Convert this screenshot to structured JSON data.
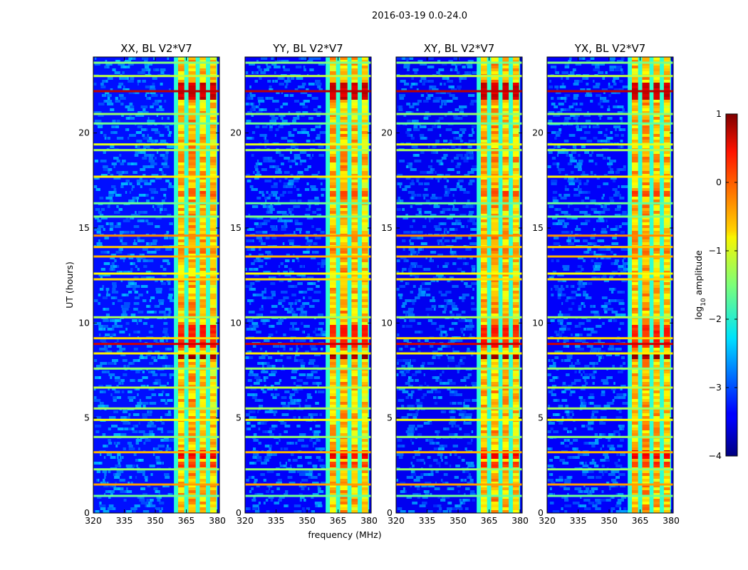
{
  "chart_data": {
    "type": "heatmap",
    "suptitle": "2016-03-19 0.0-24.0",
    "xlabel": "frequency (MHz)",
    "ylabel": "UT (hours)",
    "xlim": [
      320,
      381
    ],
    "ylim": [
      0,
      24
    ],
    "xticks": [
      320,
      335,
      350,
      365,
      380
    ],
    "yticks": [
      0,
      5,
      10,
      15,
      20
    ],
    "colormap": "jet",
    "colorbar": {
      "label": "log",
      "label_sub": "10",
      "label_rest": " amplitude",
      "range": [
        -4,
        1
      ],
      "ticks": [
        1,
        0,
        -1,
        -2,
        -3,
        -4
      ],
      "tick_labels": [
        "1",
        "0",
        "−1",
        "−2",
        "−3",
        "−4"
      ]
    },
    "panels": [
      {
        "title": "XX, BL V2*V7",
        "background": -3.3,
        "band": [
          359,
          380
        ]
      },
      {
        "title": "YY, BL V2*V7",
        "background": -3.4,
        "band": [
          359,
          380
        ]
      },
      {
        "title": "XY, BL V2*V7",
        "background": -3.45,
        "band": [
          359,
          380
        ]
      },
      {
        "title": "YX, BL V2*V7",
        "background": -3.4,
        "band": [
          359,
          380
        ]
      }
    ],
    "channels": [
      {
        "name": "ch1",
        "freq_range": [
          361,
          364
        ],
        "mean": -0.6
      },
      {
        "name": "ch2",
        "freq_range": [
          366,
          369.5
        ],
        "mean": -0.5
      },
      {
        "name": "ch3",
        "freq_range": [
          371.5,
          374.5
        ],
        "mean": -0.6
      },
      {
        "name": "ch4",
        "freq_range": [
          376.5,
          379.5
        ],
        "mean": -0.7
      }
    ],
    "bright_intervals_ut": [
      {
        "range": [
          21.9,
          22.7
        ],
        "value": 0.6
      },
      {
        "range": [
          18.6,
          18.8
        ],
        "value": -0.2
      },
      {
        "range": [
          16.8,
          17.0
        ],
        "value": 0.0
      },
      {
        "range": [
          13.8,
          14.1
        ],
        "value": -0.2
      },
      {
        "range": [
          8.8,
          9.9
        ],
        "value": 0.2
      },
      {
        "range": [
          8.2,
          8.4
        ],
        "value": 0.8
      },
      {
        "range": [
          3.0,
          3.3
        ],
        "value": 0.4
      },
      {
        "range": [
          2.5,
          2.8
        ],
        "value": 0.1
      }
    ],
    "rfi_lines_ut": [
      {
        "ut": 23.7,
        "value": -1.5
      },
      {
        "ut": 23.0,
        "value": -1.2
      },
      {
        "ut": 22.2,
        "value": 0.7
      },
      {
        "ut": 21.0,
        "value": -1.4
      },
      {
        "ut": 20.5,
        "value": -1.6
      },
      {
        "ut": 19.4,
        "value": -1.0
      },
      {
        "ut": 19.1,
        "value": -1.3
      },
      {
        "ut": 17.7,
        "value": -0.8
      },
      {
        "ut": 16.3,
        "value": -1.6
      },
      {
        "ut": 15.6,
        "value": -1.5
      },
      {
        "ut": 14.6,
        "value": -0.3
      },
      {
        "ut": 14.0,
        "value": -0.6
      },
      {
        "ut": 13.5,
        "value": -0.5
      },
      {
        "ut": 12.6,
        "value": -0.9
      },
      {
        "ut": 12.3,
        "value": -0.7
      },
      {
        "ut": 10.3,
        "value": -1.3
      },
      {
        "ut": 9.2,
        "value": -0.7
      },
      {
        "ut": 8.9,
        "value": 0.6
      },
      {
        "ut": 8.4,
        "value": -0.8
      },
      {
        "ut": 7.6,
        "value": -1.4
      },
      {
        "ut": 6.6,
        "value": -1.2
      },
      {
        "ut": 5.5,
        "value": -1.3
      },
      {
        "ut": 4.9,
        "value": -0.9
      },
      {
        "ut": 4.0,
        "value": -1.4
      },
      {
        "ut": 3.2,
        "value": -0.5
      },
      {
        "ut": 2.3,
        "value": -1.4
      },
      {
        "ut": 1.5,
        "value": -0.4
      },
      {
        "ut": 0.9,
        "value": -1.6
      }
    ]
  }
}
